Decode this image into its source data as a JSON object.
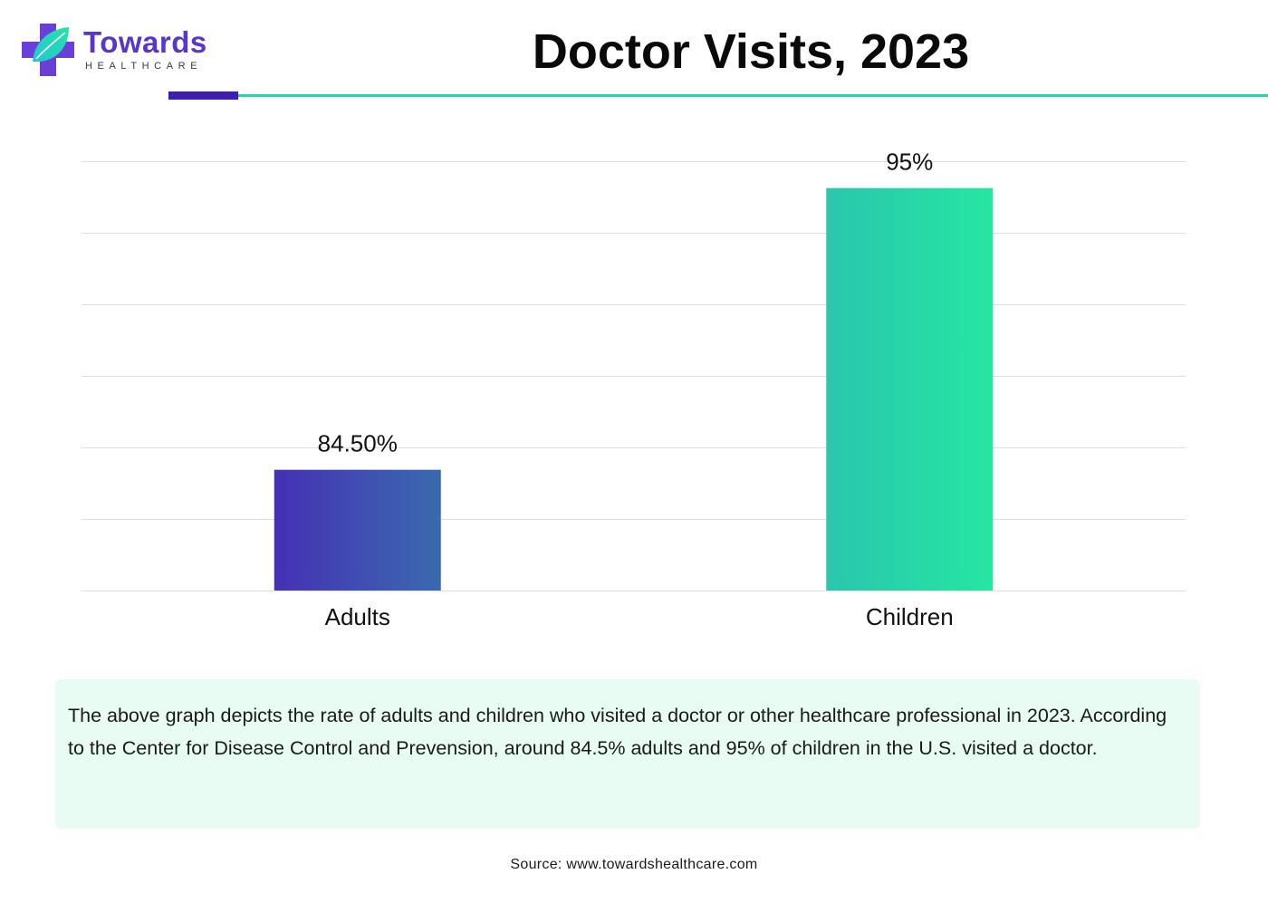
{
  "brand": {
    "name": "Towards",
    "sub": "HEALTHCARE",
    "colors": {
      "purple": "#5a35c9",
      "teal": "#2ad7a4"
    }
  },
  "header": {
    "title": "Doctor Visits, 2023"
  },
  "chart_data": {
    "type": "bar",
    "categories": [
      "Adults",
      "Children"
    ],
    "values": [
      84.5,
      95
    ],
    "data_labels": [
      "84.50%",
      "95%"
    ],
    "title": "Doctor Visits, 2023",
    "xlabel": "",
    "ylabel": "",
    "ylim": [
      80,
      96
    ],
    "y_ticks": [
      80,
      82.67,
      85.33,
      88,
      90.67,
      93.33,
      96
    ],
    "grid": true,
    "bar_colors": [
      [
        "#4530b5",
        "#3a6aae"
      ],
      [
        "#2ac6ad",
        "#26e6a2"
      ]
    ]
  },
  "description": {
    "text": "The above graph depicts the rate of adults and children who visited a doctor or other healthcare professional in 2023. According to the Center for Disease Control and Prevension, around 84.5% adults and 95% of children in the U.S. visited a doctor."
  },
  "source": {
    "text": "Source: www.towardshealthcare.com"
  }
}
